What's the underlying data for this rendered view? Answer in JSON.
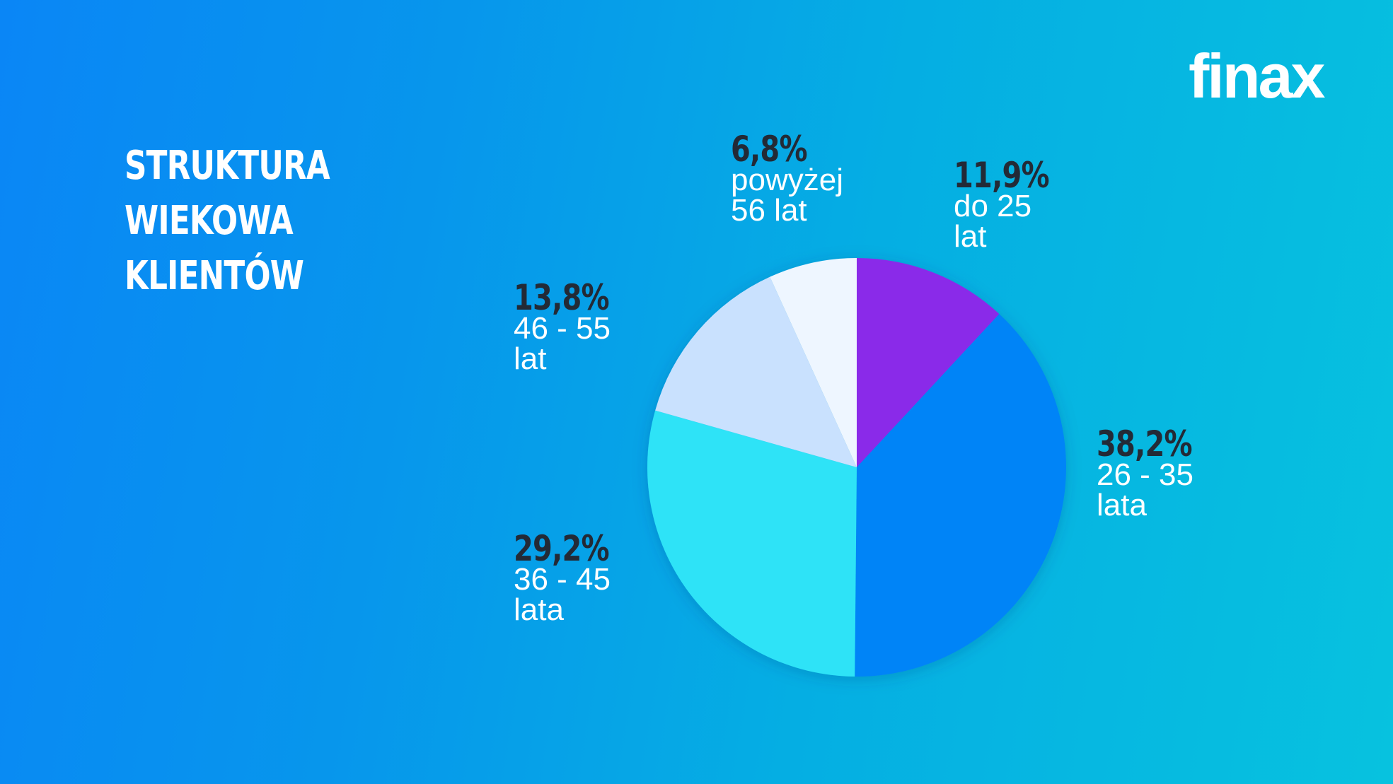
{
  "title": {
    "lines": [
      "STRUKTURA",
      "WIEKOWA",
      "KLIENTÓW"
    ]
  },
  "logo": {
    "text": "finax",
    "main": "fina",
    "last": "x",
    "icon": "finax-logo"
  },
  "colors": {
    "background_left": "#0a86f6",
    "background_right": "#07c2df",
    "percent_text": "#232a36",
    "label_text": "#ffffff",
    "slice_do25": "#8a2be9",
    "slice_26_35": "#0084f7",
    "slice_36_45": "#2de3f7",
    "slice_46_55": "#c9e1fe",
    "slice_56plus": "#eef6ff"
  },
  "labels": [
    {
      "pct": "11,9%",
      "desc": "do 25\nlat"
    },
    {
      "pct": "38,2%",
      "desc": "26 - 35\nlata"
    },
    {
      "pct": "29,2%",
      "desc": "36 - 45\nlata"
    },
    {
      "pct": "13,8%",
      "desc": "46 - 55\nlat"
    },
    {
      "pct": "6,8%",
      "desc": "powyżej\n56 lat"
    }
  ],
  "chart_data": {
    "type": "pie",
    "title": "STRUKTURA WIEKOWA KLIENTÓW",
    "categories": [
      "do 25 lat",
      "26 - 35 lata",
      "36 - 45 lata",
      "46 - 55 lat",
      "powyżej 56 lat"
    ],
    "values": [
      11.9,
      38.2,
      29.2,
      13.8,
      6.8
    ],
    "value_labels": [
      "11,9%",
      "38,2%",
      "29,2%",
      "13,8%",
      "6,8%"
    ],
    "colors": [
      "#8a2be9",
      "#0084f7",
      "#2de3f7",
      "#c9e1fe",
      "#eef6ff"
    ],
    "start_angle": "12 o'clock",
    "direction": "clockwise",
    "legend": "none (direct labels)",
    "center": [
      1211,
      661
    ],
    "radius": 296
  }
}
